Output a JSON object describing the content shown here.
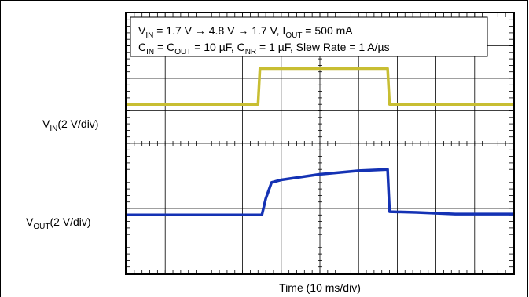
{
  "chart_data": {
    "type": "line",
    "annotation": {
      "line1": {
        "a_main": "V",
        "a_sub": "IN",
        "b": " = 1.7 V → 4.8 V → 1.7 V, I",
        "c_sub": "OUT",
        "d": " = 500 mA"
      },
      "line2": {
        "a_main": "C",
        "a_sub": "IN",
        "b": " = C",
        "c_sub": "OUT",
        "d": " = 10 µF, C",
        "e_sub": "NR",
        "f": " = 1 µF, Slew Rate = 1 A/µs"
      }
    },
    "xlabel": "Time (10 ms/div)",
    "divisions": {
      "x": 10,
      "y": 8
    },
    "grid": true,
    "series": [
      {
        "name": "VIN",
        "label_main": "V",
        "label_sub": "IN",
        "label_rest": "(2 V/div)",
        "color": "#c8be32",
        "points": [
          [
            0,
            2.8
          ],
          [
            3.4,
            2.8
          ],
          [
            3.45,
            1.7
          ],
          [
            6.75,
            1.7
          ],
          [
            6.8,
            2.8
          ],
          [
            10,
            2.8
          ]
        ]
      },
      {
        "name": "VOUT",
        "label_main": "V",
        "label_sub": "OUT",
        "label_rest": "(2 V/div)",
        "color": "#1432b4",
        "points": [
          [
            0,
            6.2
          ],
          [
            3.5,
            6.2
          ],
          [
            3.6,
            5.7
          ],
          [
            3.75,
            5.2
          ],
          [
            4.0,
            5.12
          ],
          [
            5.0,
            4.95
          ],
          [
            6.0,
            4.84
          ],
          [
            6.75,
            4.8
          ],
          [
            6.8,
            6.1
          ],
          [
            7.5,
            6.12
          ],
          [
            8.5,
            6.17
          ],
          [
            10,
            6.17
          ]
        ]
      }
    ]
  }
}
